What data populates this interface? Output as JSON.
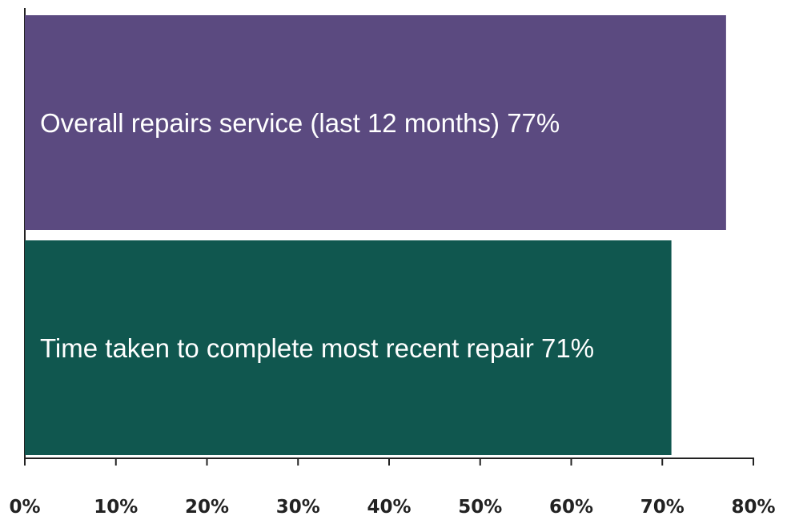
{
  "chart_data": {
    "type": "barh",
    "categories": [
      "Overall repairs service (last 12 months)",
      "Time taken to complete most recent repair"
    ],
    "values": [
      77,
      71
    ],
    "value_labels": [
      "77%",
      "71%"
    ],
    "colors": [
      "#5b4a80",
      "#10574f"
    ],
    "xlim": [
      0,
      80
    ],
    "xticks": [
      {
        "value": 0,
        "label": "0%"
      },
      {
        "value": 10,
        "label": "10%"
      },
      {
        "value": 20,
        "label": "20%"
      },
      {
        "value": 30,
        "label": "30%"
      },
      {
        "value": 40,
        "label": "40%"
      },
      {
        "value": 50,
        "label": "50%"
      },
      {
        "value": 60,
        "label": "60%"
      },
      {
        "value": 70,
        "label": "70%"
      },
      {
        "value": 80,
        "label": "80%"
      }
    ]
  }
}
